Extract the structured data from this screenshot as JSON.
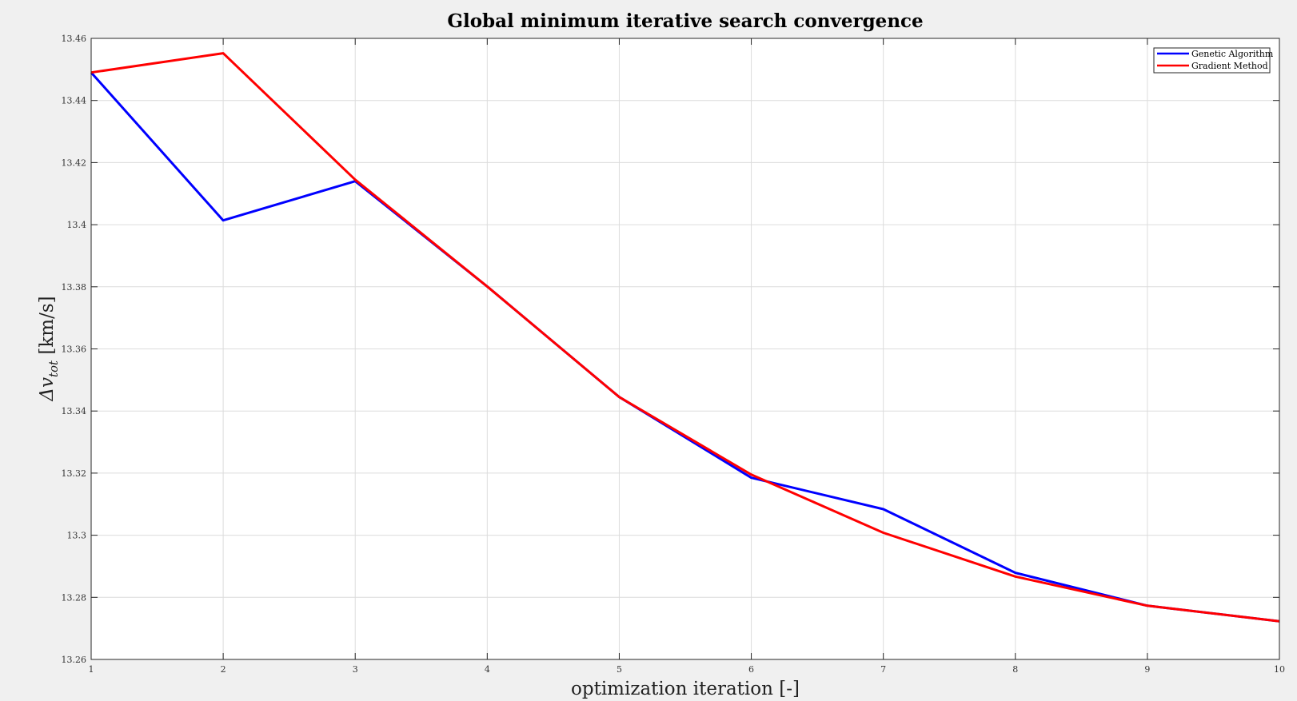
{
  "chart_data": {
    "type": "line",
    "title": "Global minimum iterative search convergence",
    "xlabel": "optimization iteration [-]",
    "ylabel_prefix": "Δv",
    "ylabel_subscript": "tot",
    "ylabel_suffix": " [km/s]",
    "xlim": [
      1,
      10
    ],
    "ylim": [
      13.26,
      13.46
    ],
    "xticks": [
      1,
      2,
      3,
      4,
      5,
      6,
      7,
      8,
      9,
      10
    ],
    "xtick_labels": [
      "1",
      "2",
      "3",
      "4",
      "5",
      "6",
      "7",
      "8",
      "9",
      "10"
    ],
    "yticks": [
      13.26,
      13.28,
      13.3,
      13.32,
      13.34,
      13.36,
      13.38,
      13.4,
      13.42,
      13.44,
      13.46
    ],
    "ytick_labels": [
      "13.26",
      "13.28",
      "13.3",
      "13.32",
      "13.34",
      "13.36",
      "13.38",
      "13.4",
      "13.42",
      "13.44",
      "13.46"
    ],
    "grid": true,
    "legend_position": "top-right",
    "x": [
      1,
      2,
      3,
      4,
      5,
      6,
      7,
      8,
      9,
      10
    ],
    "series": [
      {
        "name": "Genetic Algorithm",
        "color": "#0000ff",
        "values": [
          13.449,
          13.4014,
          13.414,
          13.3801,
          13.3445,
          13.3185,
          13.3084,
          13.2879,
          13.2773,
          13.2723
        ]
      },
      {
        "name": "Gradient Method",
        "color": "#ff0000",
        "values": [
          13.449,
          13.4552,
          13.4145,
          13.3801,
          13.3445,
          13.3195,
          13.3008,
          13.2867,
          13.2773,
          13.2723
        ]
      }
    ]
  }
}
